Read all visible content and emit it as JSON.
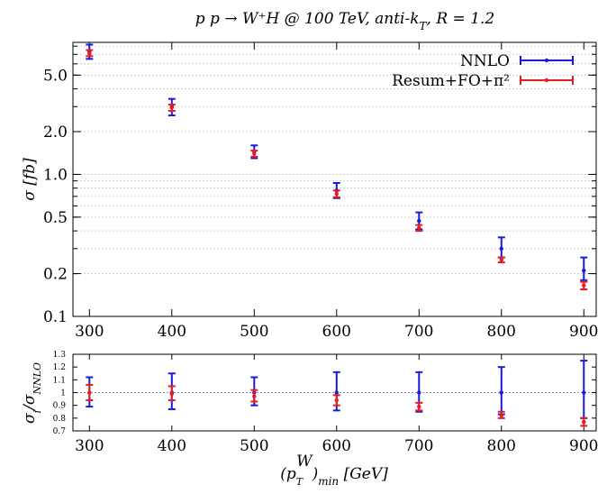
{
  "chart_data": [
    {
      "type": "scatter",
      "title": "p p → W⁺H @ 100 TeV, anti-k_T, R = 1.2",
      "ylabel": "σ [fb]",
      "yscale": "log",
      "ylim": [
        0.1,
        8.5
      ],
      "xlim": [
        280,
        915
      ],
      "x": [
        300,
        400,
        500,
        600,
        700,
        800,
        900
      ],
      "x_ticks": [
        "300",
        "400",
        "500",
        "600",
        "700",
        "800",
        "900"
      ],
      "y_ticks": [
        {
          "value": 0.1,
          "label": "0.1"
        },
        {
          "value": 0.2,
          "label": "0.2"
        },
        {
          "value": 0.5,
          "label": "0.5"
        },
        {
          "value": 1.0,
          "label": "1.0"
        },
        {
          "value": 2.0,
          "label": "2.0"
        },
        {
          "value": 5.0,
          "label": "5.0"
        }
      ],
      "grid": true,
      "legend_position": "top-right",
      "series": [
        {
          "name": "NNLO",
          "color": "#1a1adb",
          "values": [
            7.3,
            3.0,
            1.45,
            0.77,
            0.47,
            0.3,
            0.21
          ],
          "err_low": [
            6.5,
            2.6,
            1.3,
            0.68,
            0.41,
            0.26,
            0.18
          ],
          "err_high": [
            8.2,
            3.4,
            1.6,
            0.87,
            0.54,
            0.36,
            0.26
          ]
        },
        {
          "name": "Resum+FO+π²",
          "color": "#e81c1c",
          "values": [
            7.1,
            2.95,
            1.4,
            0.73,
            0.42,
            0.25,
            0.165
          ],
          "err_low": [
            6.8,
            2.8,
            1.33,
            0.69,
            0.4,
            0.24,
            0.155
          ],
          "err_high": [
            7.5,
            3.1,
            1.47,
            0.77,
            0.44,
            0.26,
            0.175
          ]
        }
      ]
    },
    {
      "type": "scatter",
      "xlabel": "(p_T^W)_min [GeV]",
      "ylabel": "σ_i/σ_NNLO",
      "ylim": [
        0.7,
        1.3
      ],
      "xlim": [
        280,
        915
      ],
      "x": [
        300,
        400,
        500,
        600,
        700,
        800,
        900
      ],
      "x_ticks": [
        "300",
        "400",
        "500",
        "600",
        "700",
        "800",
        "900"
      ],
      "y_ticks": [
        "0.7",
        "0.8",
        "0.9",
        "1",
        "1.1",
        "1.2",
        "1.3"
      ],
      "reference_line": 1.0,
      "series": [
        {
          "name": "NNLO",
          "color": "#1a1adb",
          "values": [
            1.0,
            1.0,
            1.0,
            1.0,
            1.0,
            1.0,
            1.0
          ],
          "err_low": [
            0.89,
            0.87,
            0.9,
            0.86,
            0.85,
            0.83,
            0.8
          ],
          "err_high": [
            1.12,
            1.15,
            1.12,
            1.16,
            1.16,
            1.2,
            1.25
          ]
        },
        {
          "name": "Resum+FO+π²",
          "color": "#e81c1c",
          "values": [
            1.0,
            0.99,
            0.97,
            0.94,
            0.89,
            0.82,
            0.77
          ],
          "err_low": [
            0.94,
            0.94,
            0.93,
            0.9,
            0.86,
            0.8,
            0.74
          ],
          "err_high": [
            1.06,
            1.05,
            1.02,
            0.98,
            0.92,
            0.85,
            0.8
          ]
        }
      ]
    }
  ]
}
